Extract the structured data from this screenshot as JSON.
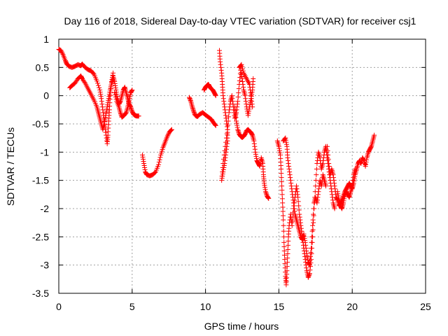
{
  "chart_data": {
    "type": "scatter",
    "title": "Day 116 of 2018, Sidereal Day-to-day VTEC variation (SDTVAR) for receiver csj1",
    "xlabel": "GPS time / hours",
    "ylabel": "SDTVAR / TECUs",
    "xlim": [
      0,
      25
    ],
    "ylim": [
      -3.5,
      1
    ],
    "xticks": [
      "0",
      "5",
      "10",
      "15",
      "20",
      "25"
    ],
    "yticks": [
      "1",
      "0.5",
      "0",
      "-0.5",
      "-1",
      "-1.5",
      "-2",
      "-2.5",
      "-3",
      "-3.5"
    ],
    "xtick_values": [
      0,
      5,
      10,
      15,
      20,
      25
    ],
    "ytick_values": [
      1,
      0.5,
      0,
      -0.5,
      -1,
      -1.5,
      -2,
      -2.5,
      -3,
      -3.5
    ],
    "grid": true,
    "marker": "plus",
    "color": "#ff0000",
    "segments": [
      [
        [
          0.0,
          0.82
        ],
        [
          0.15,
          0.8
        ],
        [
          0.3,
          0.72
        ],
        [
          0.45,
          0.62
        ],
        [
          0.55,
          0.56
        ],
        [
          0.7,
          0.52
        ],
        [
          0.9,
          0.5
        ],
        [
          1.1,
          0.52
        ],
        [
          1.3,
          0.55
        ],
        [
          1.5,
          0.53
        ],
        [
          1.6,
          0.56
        ],
        [
          1.8,
          0.5
        ],
        [
          2.0,
          0.46
        ],
        [
          2.2,
          0.44
        ],
        [
          2.4,
          0.38
        ],
        [
          2.6,
          0.26
        ],
        [
          2.8,
          0.1
        ],
        [
          2.9,
          -0.05
        ],
        [
          3.0,
          -0.25
        ],
        [
          3.1,
          -0.45
        ],
        [
          3.2,
          -0.65
        ],
        [
          3.3,
          -0.85
        ],
        [
          3.35,
          -0.7
        ],
        [
          3.4,
          -0.45
        ],
        [
          3.45,
          -0.25
        ],
        [
          3.5,
          0.0
        ],
        [
          3.6,
          0.25
        ],
        [
          3.7,
          0.4
        ]
      ],
      [
        [
          0.75,
          0.14
        ],
        [
          0.9,
          0.18
        ],
        [
          1.1,
          0.22
        ],
        [
          1.3,
          0.3
        ],
        [
          1.5,
          0.35
        ],
        [
          1.6,
          0.3
        ],
        [
          1.8,
          0.22
        ],
        [
          2.0,
          0.12
        ],
        [
          2.2,
          0.02
        ],
        [
          2.4,
          -0.08
        ],
        [
          2.6,
          -0.2
        ],
        [
          2.7,
          -0.3
        ],
        [
          2.8,
          -0.4
        ],
        [
          2.9,
          -0.5
        ],
        [
          3.0,
          -0.6
        ],
        [
          3.1,
          -0.5
        ],
        [
          3.2,
          -0.35
        ],
        [
          3.3,
          -0.2
        ],
        [
          3.4,
          -0.05
        ],
        [
          3.5,
          0.1
        ],
        [
          3.6,
          0.22
        ],
        [
          3.7,
          0.3
        ]
      ],
      [
        [
          3.7,
          0.35
        ],
        [
          3.8,
          0.25
        ],
        [
          3.9,
          0.1
        ],
        [
          4.0,
          -0.05
        ],
        [
          4.1,
          -0.15
        ],
        [
          4.2,
          -0.1
        ],
        [
          4.3,
          0.0
        ],
        [
          4.4,
          0.1
        ],
        [
          4.5,
          0.15
        ],
        [
          4.6,
          0.05
        ],
        [
          4.7,
          -0.05
        ],
        [
          4.8,
          -0.15
        ],
        [
          4.9,
          -0.2
        ],
        [
          5.0,
          -0.28
        ],
        [
          5.1,
          -0.33
        ],
        [
          5.2,
          -0.35
        ],
        [
          5.3,
          -0.36
        ],
        [
          5.45,
          -0.36
        ]
      ],
      [
        [
          3.8,
          0.05
        ],
        [
          3.95,
          -0.1
        ],
        [
          4.1,
          -0.2
        ],
        [
          4.2,
          -0.3
        ],
        [
          4.3,
          -0.38
        ],
        [
          4.45,
          -0.35
        ],
        [
          4.6,
          -0.3
        ],
        [
          4.7,
          -0.2
        ],
        [
          4.8,
          -0.08
        ],
        [
          4.9,
          0.05
        ],
        [
          5.0,
          0.1
        ]
      ],
      [
        [
          5.7,
          -1.05
        ],
        [
          5.8,
          -1.2
        ],
        [
          5.9,
          -1.35
        ],
        [
          6.0,
          -1.4
        ],
        [
          6.2,
          -1.42
        ],
        [
          6.4,
          -1.4
        ],
        [
          6.6,
          -1.35
        ],
        [
          6.8,
          -1.22
        ],
        [
          6.95,
          -1.05
        ],
        [
          7.1,
          -0.92
        ],
        [
          7.25,
          -0.82
        ],
        [
          7.4,
          -0.72
        ],
        [
          7.55,
          -0.64
        ],
        [
          7.7,
          -0.6
        ]
      ],
      [
        [
          8.9,
          -0.03
        ],
        [
          9.0,
          -0.1
        ],
        [
          9.1,
          -0.2
        ],
        [
          9.2,
          -0.28
        ],
        [
          9.3,
          -0.35
        ],
        [
          9.45,
          -0.37
        ],
        [
          9.6,
          -0.33
        ],
        [
          9.8,
          -0.3
        ],
        [
          10.0,
          -0.34
        ],
        [
          10.2,
          -0.38
        ],
        [
          10.4,
          -0.42
        ],
        [
          10.55,
          -0.48
        ],
        [
          10.7,
          -0.53
        ]
      ],
      [
        [
          9.9,
          0.1
        ],
        [
          10.0,
          0.15
        ],
        [
          10.1,
          0.18
        ],
        [
          10.2,
          0.2
        ],
        [
          10.3,
          0.15
        ],
        [
          10.4,
          0.12
        ],
        [
          10.5,
          0.1
        ],
        [
          10.6,
          0.05
        ],
        [
          10.7,
          0.0
        ]
      ],
      [
        [
          10.95,
          0.8
        ],
        [
          11.0,
          0.6
        ],
        [
          11.1,
          0.4
        ],
        [
          11.15,
          0.2
        ],
        [
          11.2,
          0.0
        ],
        [
          11.3,
          -0.2
        ],
        [
          11.4,
          -0.4
        ],
        [
          11.5,
          -0.6
        ],
        [
          11.5,
          -0.8
        ],
        [
          11.4,
          -1.0
        ],
        [
          11.3,
          -1.2
        ],
        [
          11.2,
          -1.35
        ],
        [
          11.1,
          -1.5
        ],
        [
          11.2,
          -1.2
        ],
        [
          11.35,
          -0.9
        ],
        [
          11.5,
          -0.6
        ],
        [
          11.6,
          -0.3
        ],
        [
          11.7,
          -0.1
        ],
        [
          11.8,
          0.0
        ],
        [
          11.9,
          -0.2
        ],
        [
          12.0,
          -0.4
        ],
        [
          12.1,
          -0.3
        ],
        [
          12.2,
          -0.1
        ],
        [
          12.3,
          0.2
        ],
        [
          12.4,
          0.45
        ],
        [
          12.5,
          0.3
        ],
        [
          12.6,
          0.1
        ],
        [
          12.7,
          0.0
        ],
        [
          12.8,
          -0.2
        ],
        [
          12.9,
          -0.35
        ],
        [
          13.0,
          -0.2
        ],
        [
          13.1,
          -0.05
        ],
        [
          13.2,
          0.1
        ],
        [
          13.25,
          0.3
        ]
      ],
      [
        [
          12.0,
          -0.2
        ],
        [
          12.1,
          -0.45
        ],
        [
          12.2,
          -0.6
        ],
        [
          12.3,
          -0.68
        ],
        [
          12.4,
          -0.72
        ],
        [
          12.5,
          -0.74
        ],
        [
          12.6,
          -0.72
        ],
        [
          12.7,
          -0.68
        ],
        [
          12.8,
          -0.62
        ],
        [
          12.9,
          -0.6
        ],
        [
          13.0,
          -0.63
        ],
        [
          13.1,
          -0.65
        ],
        [
          13.2,
          -0.7
        ],
        [
          13.3,
          -0.8
        ],
        [
          13.4,
          -1.0
        ],
        [
          13.5,
          -1.15
        ],
        [
          13.6,
          -1.2
        ],
        [
          13.7,
          -1.25
        ],
        [
          13.8,
          -1.1
        ],
        [
          13.9,
          -1.2
        ],
        [
          13.95,
          -1.4
        ],
        [
          14.0,
          -1.55
        ],
        [
          14.1,
          -1.7
        ],
        [
          14.2,
          -1.78
        ],
        [
          14.3,
          -1.82
        ]
      ],
      [
        [
          12.3,
          0.5
        ],
        [
          12.45,
          0.55
        ],
        [
          12.6,
          0.4
        ],
        [
          12.8,
          0.3
        ],
        [
          13.0,
          0.2
        ],
        [
          13.1,
          0.0
        ],
        [
          13.2,
          -0.2
        ]
      ],
      [
        [
          14.9,
          -0.8
        ],
        [
          15.0,
          -0.9
        ],
        [
          15.1,
          -1.05
        ],
        [
          15.15,
          -1.3
        ],
        [
          15.2,
          -1.6
        ],
        [
          15.25,
          -1.9
        ],
        [
          15.3,
          -2.2
        ],
        [
          15.35,
          -2.6
        ],
        [
          15.4,
          -2.9
        ],
        [
          15.45,
          -3.2
        ],
        [
          15.5,
          -3.35
        ],
        [
          15.55,
          -3.1
        ],
        [
          15.6,
          -2.8
        ],
        [
          15.65,
          -2.5
        ],
        [
          15.7,
          -2.3
        ],
        [
          15.8,
          -2.1
        ],
        [
          15.9,
          -2.3
        ],
        [
          16.0,
          -2.0
        ],
        [
          16.1,
          -1.8
        ],
        [
          16.2,
          -1.6
        ],
        [
          16.3,
          -1.8
        ],
        [
          16.4,
          -2.1
        ],
        [
          16.5,
          -2.3
        ],
        [
          16.6,
          -2.5
        ],
        [
          16.7,
          -2.7
        ],
        [
          16.8,
          -2.9
        ],
        [
          16.9,
          -3.1
        ],
        [
          17.0,
          -3.22
        ],
        [
          17.1,
          -3.15
        ],
        [
          17.2,
          -2.9
        ],
        [
          17.3,
          -2.5
        ],
        [
          17.4,
          -2.0
        ],
        [
          17.5,
          -1.6
        ],
        [
          17.6,
          -1.2
        ],
        [
          17.7,
          -1.0
        ],
        [
          17.8,
          -1.1
        ],
        [
          17.9,
          -1.3
        ],
        [
          18.0,
          -1.2
        ],
        [
          18.1,
          -1.0
        ],
        [
          18.2,
          -0.9
        ],
        [
          18.3,
          -1.1
        ],
        [
          18.4,
          -1.3
        ],
        [
          18.5,
          -1.5
        ],
        [
          18.6,
          -1.7
        ],
        [
          18.7,
          -1.9
        ],
        [
          18.8,
          -2.0
        ]
      ],
      [
        [
          15.3,
          -0.8
        ],
        [
          15.45,
          -0.75
        ],
        [
          15.55,
          -0.9
        ],
        [
          15.6,
          -1.1
        ],
        [
          15.7,
          -1.3
        ],
        [
          15.8,
          -1.5
        ],
        [
          15.9,
          -1.7
        ],
        [
          16.0,
          -1.9
        ],
        [
          16.1,
          -2.1
        ],
        [
          16.2,
          -2.2
        ],
        [
          16.3,
          -2.3
        ],
        [
          16.4,
          -2.4
        ],
        [
          16.5,
          -2.5
        ],
        [
          16.6,
          -2.55
        ],
        [
          16.7,
          -2.45
        ],
        [
          16.8,
          -2.6
        ],
        [
          16.9,
          -2.8
        ],
        [
          17.0,
          -2.95
        ],
        [
          17.1,
          -3.0
        ],
        [
          17.2,
          -2.7
        ],
        [
          17.3,
          -2.3
        ],
        [
          17.4,
          -1.9
        ],
        [
          17.5,
          -1.8
        ],
        [
          17.6,
          -1.9
        ],
        [
          17.7,
          -1.7
        ],
        [
          17.8,
          -1.5
        ],
        [
          17.9,
          -1.6
        ],
        [
          18.0,
          -1.4
        ],
        [
          18.1,
          -1.5
        ],
        [
          18.2,
          -1.6
        ]
      ],
      [
        [
          18.3,
          -0.9
        ],
        [
          18.4,
          -1.2
        ],
        [
          18.5,
          -1.4
        ],
        [
          18.6,
          -1.3
        ],
        [
          18.7,
          -1.4
        ],
        [
          18.8,
          -1.6
        ],
        [
          18.9,
          -1.8
        ],
        [
          19.0,
          -1.85
        ],
        [
          19.1,
          -1.95
        ],
        [
          19.2,
          -1.9
        ],
        [
          19.3,
          -1.85
        ],
        [
          19.4,
          -1.78
        ],
        [
          19.5,
          -1.7
        ],
        [
          19.6,
          -1.65
        ],
        [
          19.7,
          -1.6
        ],
        [
          19.8,
          -1.55
        ],
        [
          19.9,
          -1.6
        ],
        [
          20.0,
          -1.65
        ],
        [
          20.1,
          -1.55
        ],
        [
          20.2,
          -1.4
        ],
        [
          20.3,
          -1.3
        ],
        [
          20.4,
          -1.2
        ],
        [
          20.5,
          -1.15
        ],
        [
          20.6,
          -1.2
        ],
        [
          20.7,
          -1.1
        ],
        [
          20.8,
          -1.15
        ],
        [
          20.9,
          -1.25
        ],
        [
          21.0,
          -1.1
        ],
        [
          21.1,
          -1.0
        ],
        [
          21.2,
          -0.95
        ],
        [
          21.3,
          -0.9
        ],
        [
          21.4,
          -0.8
        ],
        [
          21.5,
          -0.7
        ]
      ],
      [
        [
          19.0,
          -1.7
        ],
        [
          19.1,
          -1.85
        ],
        [
          19.2,
          -1.95
        ],
        [
          19.3,
          -2.0
        ],
        [
          19.4,
          -1.9
        ],
        [
          19.5,
          -1.75
        ],
        [
          19.6,
          -1.7
        ],
        [
          19.7,
          -1.75
        ],
        [
          19.8,
          -1.8
        ],
        [
          19.9,
          -1.7
        ],
        [
          20.0,
          -1.6
        ],
        [
          20.1,
          -1.4
        ],
        [
          20.2,
          -1.3
        ]
      ]
    ]
  }
}
